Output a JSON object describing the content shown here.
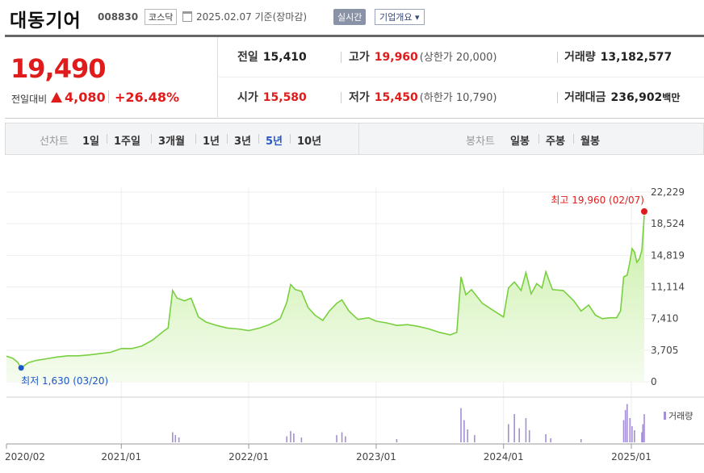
{
  "header": {
    "stock_name": "대동기어",
    "stock_code": "008830",
    "market": "코스닥",
    "date_text": "2025.02.07  기준(장마감)",
    "realtime_label": "실시간",
    "overview_label": "기업개요 ▾",
    "calendar_icon": "calendar-icon"
  },
  "summary": {
    "current_price": "19,490",
    "change_label": "전일대비",
    "change_value": "4,080",
    "change_pct": "+26.48%",
    "prev_close_label": "전일",
    "prev_close": "15,410",
    "high_label": "고가",
    "high": "19,960",
    "upper_limit": "(상한가 20,000)",
    "volume_label": "거래량",
    "volume": "13,182,577",
    "open_label": "시가",
    "open": "15,580",
    "low_label": "저가",
    "low": "15,450",
    "lower_limit": "(하한가 10,790)",
    "trade_value_label": "거래대금",
    "trade_value": "236,902",
    "trade_value_unit": "백만",
    "colors": {
      "up": "#e01b1b",
      "down": "#1a56c7"
    }
  },
  "periods": {
    "line_label": "선차트",
    "line_items": [
      "1일",
      "1주일",
      "3개월",
      "1년",
      "3년",
      "5년",
      "10년"
    ],
    "active": "5년",
    "candle_label": "봉차트",
    "candle_items": [
      "일봉",
      "주봉",
      "월봉"
    ]
  },
  "chart_data": {
    "type": "area",
    "ylim": [
      0,
      22229
    ],
    "yticks": [
      "22,229",
      "18,524",
      "14,819",
      "11,114",
      "7,410",
      "3,705",
      "0"
    ],
    "ytick_values": [
      22229,
      18524,
      14819,
      11114,
      7410,
      3705,
      0
    ],
    "xticks": [
      "2020/02",
      "2021/01",
      "2022/01",
      "2023/01",
      "2024/01",
      "2025/01"
    ],
    "xtick_dates": [
      "2020-02-07",
      "2021-01-01",
      "2022-01-01",
      "2023-01-01",
      "2024-01-01",
      "2025-01-01"
    ],
    "x_start": "2020-02-07",
    "x_end": "2025-02-07",
    "max_annotation": "최고 19,960 (02/07)",
    "min_annotation": "최저 1,630 (03/20)",
    "volume_legend": "거래량",
    "line_color": "#78d040",
    "fill_color": "#e4f7d4",
    "series": [
      {
        "values": [
          [
            "2020-02-07",
            3000
          ],
          [
            "2020-02-25",
            2750
          ],
          [
            "2020-03-10",
            2300
          ],
          [
            "2020-03-20",
            1630
          ],
          [
            "2020-04-10",
            2250
          ],
          [
            "2020-05-01",
            2500
          ],
          [
            "2020-06-01",
            2700
          ],
          [
            "2020-07-01",
            2900
          ],
          [
            "2020-08-01",
            3050
          ],
          [
            "2020-09-01",
            3050
          ],
          [
            "2020-10-01",
            3150
          ],
          [
            "2020-11-01",
            3300
          ],
          [
            "2020-12-01",
            3450
          ],
          [
            "2021-01-01",
            3900
          ],
          [
            "2021-02-01",
            3900
          ],
          [
            "2021-03-01",
            4200
          ],
          [
            "2021-04-01",
            4900
          ],
          [
            "2021-05-01",
            5900
          ],
          [
            "2021-05-15",
            6300
          ],
          [
            "2021-05-28",
            10700
          ],
          [
            "2021-06-10",
            9800
          ],
          [
            "2021-07-01",
            9500
          ],
          [
            "2021-07-20",
            9800
          ],
          [
            "2021-08-10",
            7600
          ],
          [
            "2021-09-01",
            7000
          ],
          [
            "2021-10-01",
            6600
          ],
          [
            "2021-11-01",
            6300
          ],
          [
            "2021-12-01",
            6200
          ],
          [
            "2022-01-01",
            6000
          ],
          [
            "2022-02-01",
            6300
          ],
          [
            "2022-03-01",
            6700
          ],
          [
            "2022-04-01",
            7400
          ],
          [
            "2022-04-20",
            9300
          ],
          [
            "2022-05-01",
            11400
          ],
          [
            "2022-05-15",
            10800
          ],
          [
            "2022-06-01",
            10600
          ],
          [
            "2022-06-20",
            8700
          ],
          [
            "2022-07-10",
            7800
          ],
          [
            "2022-08-01",
            7200
          ],
          [
            "2022-08-20",
            8300
          ],
          [
            "2022-09-10",
            9200
          ],
          [
            "2022-09-25",
            9600
          ],
          [
            "2022-10-15",
            8300
          ],
          [
            "2022-11-10",
            7300
          ],
          [
            "2022-12-10",
            7500
          ],
          [
            "2023-01-01",
            7100
          ],
          [
            "2023-02-01",
            6900
          ],
          [
            "2023-03-01",
            6600
          ],
          [
            "2023-04-01",
            6700
          ],
          [
            "2023-05-01",
            6500
          ],
          [
            "2023-06-01",
            6200
          ],
          [
            "2023-07-01",
            5800
          ],
          [
            "2023-08-01",
            5500
          ],
          [
            "2023-08-20",
            5800
          ],
          [
            "2023-09-01",
            12300
          ],
          [
            "2023-09-15",
            10200
          ],
          [
            "2023-10-01",
            10800
          ],
          [
            "2023-11-01",
            9200
          ],
          [
            "2023-12-01",
            8400
          ],
          [
            "2024-01-01",
            7600
          ],
          [
            "2024-01-15",
            11000
          ],
          [
            "2024-02-01",
            11700
          ],
          [
            "2024-02-20",
            10700
          ],
          [
            "2024-03-05",
            12800
          ],
          [
            "2024-03-20",
            10300
          ],
          [
            "2024-04-05",
            11500
          ],
          [
            "2024-04-20",
            11000
          ],
          [
            "2024-05-01",
            12900
          ],
          [
            "2024-05-20",
            10800
          ],
          [
            "2024-06-20",
            10700
          ],
          [
            "2024-07-20",
            9500
          ],
          [
            "2024-08-10",
            8300
          ],
          [
            "2024-09-01",
            9000
          ],
          [
            "2024-09-20",
            7800
          ],
          [
            "2024-10-10",
            7400
          ],
          [
            "2024-11-01",
            7500
          ],
          [
            "2024-11-20",
            7500
          ],
          [
            "2024-12-01",
            8300
          ],
          [
            "2024-12-10",
            12300
          ],
          [
            "2024-12-20",
            12500
          ],
          [
            "2024-12-28",
            14100
          ],
          [
            "2025-01-03",
            15600
          ],
          [
            "2025-01-10",
            15200
          ],
          [
            "2025-01-17",
            14000
          ],
          [
            "2025-01-24",
            14400
          ],
          [
            "2025-01-31",
            15400
          ],
          [
            "2025-02-07",
            19490
          ]
        ]
      }
    ],
    "volume_series": [
      [
        "2021-05-28",
        0.25
      ],
      [
        "2021-06-05",
        0.18
      ],
      [
        "2021-06-15",
        0.12
      ],
      [
        "2022-04-20",
        0.15
      ],
      [
        "2022-05-01",
        0.28
      ],
      [
        "2022-05-10",
        0.22
      ],
      [
        "2022-06-01",
        0.12
      ],
      [
        "2022-09-10",
        0.18
      ],
      [
        "2022-09-25",
        0.25
      ],
      [
        "2022-10-05",
        0.15
      ],
      [
        "2023-03-01",
        0.08
      ],
      [
        "2023-09-01",
        0.85
      ],
      [
        "2023-09-10",
        0.55
      ],
      [
        "2023-09-20",
        0.32
      ],
      [
        "2023-10-10",
        0.18
      ],
      [
        "2024-01-15",
        0.45
      ],
      [
        "2024-02-01",
        0.7
      ],
      [
        "2024-02-15",
        0.35
      ],
      [
        "2024-03-05",
        0.6
      ],
      [
        "2024-03-15",
        0.3
      ],
      [
        "2024-05-01",
        0.2
      ],
      [
        "2024-05-15",
        0.1
      ],
      [
        "2024-08-10",
        0.08
      ],
      [
        "2024-12-10",
        0.55
      ],
      [
        "2024-12-15",
        0.8
      ],
      [
        "2024-12-20",
        0.95
      ],
      [
        "2024-12-28",
        0.6
      ],
      [
        "2025-01-03",
        0.4
      ],
      [
        "2025-01-10",
        0.3
      ],
      [
        "2025-01-31",
        0.25
      ],
      [
        "2025-02-03",
        0.45
      ],
      [
        "2025-02-07",
        0.7
      ]
    ]
  }
}
